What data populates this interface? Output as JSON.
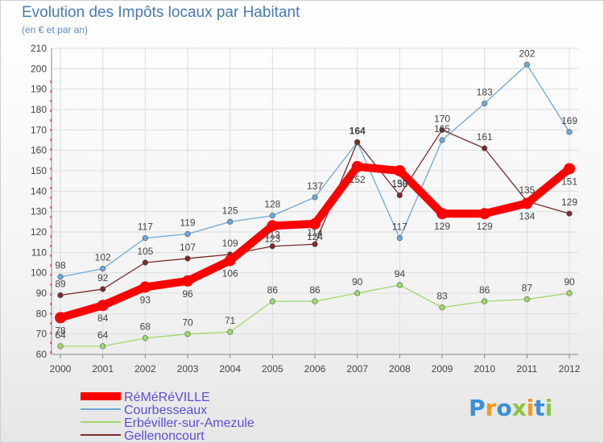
{
  "chart_data": {
    "type": "line",
    "title": "Evolution des Impôts locaux par Habitant",
    "subtitle": "(en € et par an)",
    "x": [
      "2000",
      "2001",
      "2002",
      "2003",
      "2004",
      "2005",
      "2006",
      "2007",
      "2008",
      "2009",
      "2010",
      "2011",
      "2012"
    ],
    "ylim": [
      60,
      210
    ],
    "yticks": [
      60,
      70,
      80,
      90,
      100,
      110,
      120,
      130,
      140,
      150,
      160,
      170,
      180,
      190,
      200,
      210
    ],
    "grid": true,
    "legend": "bottom-left",
    "series": [
      {
        "name": "RéMéRéVILLE",
        "color": "#ff0000",
        "values": [
          78,
          84,
          93,
          96,
          106,
          123,
          124,
          152,
          150,
          129,
          129,
          134,
          151
        ]
      },
      {
        "name": "Courbesseaux",
        "color": "#6fa8d6",
        "values": [
          98,
          102,
          117,
          119,
          125,
          128,
          137,
          164,
          117,
          165,
          183,
          202,
          169
        ]
      },
      {
        "name": "Erbéviller-sur-Amezule",
        "color": "#9ed86b",
        "values": [
          64,
          64,
          68,
          70,
          71,
          86,
          86,
          90,
          94,
          83,
          86,
          87,
          90
        ]
      },
      {
        "name": "Gellenoncourt",
        "color": "#7a2a2a",
        "values": [
          89,
          92,
          105,
          107,
          109,
          113,
          114,
          164,
          138,
          170,
          161,
          135,
          129
        ]
      }
    ]
  },
  "logo": {
    "letters": [
      "P",
      "r",
      "o",
      "x",
      "i",
      "t",
      "i"
    ],
    "colors": [
      "#3a8fd9",
      "#f39a1c",
      "#3a8fd9",
      "#8bc53f",
      "#f39a1c",
      "#3a8fd9",
      "#8bc53f"
    ]
  }
}
